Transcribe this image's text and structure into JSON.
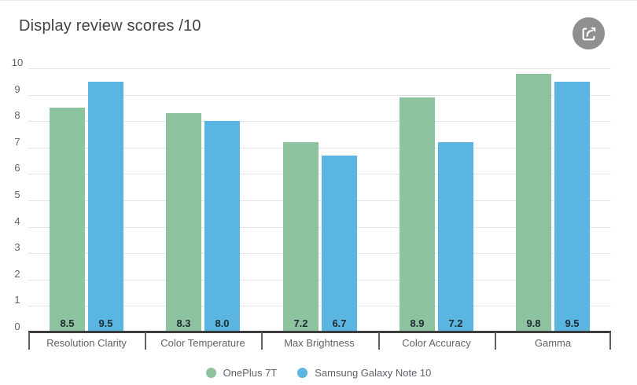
{
  "header": {
    "title": "Display review scores /10"
  },
  "toolbar": {
    "share_button": {
      "icon": "share-export-icon",
      "bg_color": "#8f8f8f",
      "glyph_color": "#ffffff"
    }
  },
  "chart_data": {
    "type": "bar",
    "title": "Display review scores /10",
    "categories": [
      "Resolution Clarity",
      "Color Temperature",
      "Max Brightness",
      "Color Accuracy",
      "Gamma"
    ],
    "series": [
      {
        "name": "OnePlus 7T",
        "color": "#8ec3a0",
        "values": [
          8.5,
          8.3,
          7.2,
          8.9,
          9.8
        ]
      },
      {
        "name": "Samsung Galaxy Note 10",
        "color": "#5ab6e0",
        "values": [
          9.5,
          8.0,
          6.7,
          7.2,
          9.5
        ]
      }
    ],
    "ylim": [
      0,
      10
    ],
    "yticks": [
      0,
      1,
      2,
      3,
      4,
      5,
      6,
      7,
      8,
      9,
      10
    ],
    "ytick_step": 1,
    "grid": true,
    "legend_position": "bottom",
    "value_label_decimals": 1
  },
  "colors": {
    "background": "#ffffff",
    "title": "#424242",
    "grid_line": "#e4e4e4",
    "axis_line": "#3d3d3d",
    "tick_mark": "#616161",
    "axis_label": "#5f6368",
    "category_label": "#5f6368",
    "value_label": "#1e2a32",
    "legend_text": "#5f6368"
  }
}
